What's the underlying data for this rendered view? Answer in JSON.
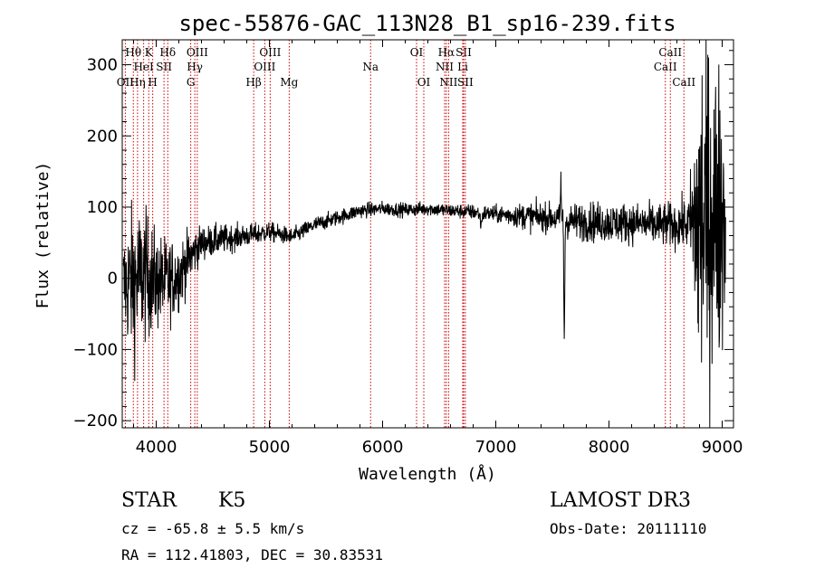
{
  "chart_data": {
    "type": "line",
    "title": "spec-55876-GAC_113N28_B1_sp16-239.fits",
    "xlabel": "Wavelength (Å)",
    "ylabel": "Flux (relative)",
    "xlim": [
      3700,
      9100
    ],
    "ylim": [
      -210,
      335
    ],
    "xticks": [
      4000,
      5000,
      6000,
      7000,
      8000,
      9000
    ],
    "yticks": [
      -200,
      -100,
      0,
      100,
      200,
      300
    ],
    "continuum": [
      [
        3700,
        -10
      ],
      [
        3800,
        -5
      ],
      [
        3900,
        5
      ],
      [
        4000,
        -5
      ],
      [
        4100,
        -5
      ],
      [
        4200,
        5
      ],
      [
        4300,
        30
      ],
      [
        4400,
        50
      ],
      [
        4600,
        55
      ],
      [
        4800,
        60
      ],
      [
        5000,
        65
      ],
      [
        5200,
        58
      ],
      [
        5400,
        75
      ],
      [
        5600,
        85
      ],
      [
        5800,
        95
      ],
      [
        6000,
        98
      ],
      [
        6200,
        96
      ],
      [
        6400,
        98
      ],
      [
        6600,
        95
      ],
      [
        6800,
        93
      ],
      [
        7000,
        90
      ],
      [
        7200,
        88
      ],
      [
        7500,
        85
      ],
      [
        7600,
        80
      ],
      [
        7800,
        80
      ],
      [
        8000,
        78
      ],
      [
        8200,
        78
      ],
      [
        8400,
        75
      ],
      [
        8600,
        75
      ],
      [
        8750,
        78
      ],
      [
        8800,
        75
      ],
      [
        8900,
        90
      ],
      [
        9000,
        90
      ]
    ],
    "noise": [
      [
        3700,
        35
      ],
      [
        3800,
        55
      ],
      [
        3900,
        45
      ],
      [
        4000,
        35
      ],
      [
        4200,
        25
      ],
      [
        4400,
        12
      ],
      [
        4800,
        8
      ],
      [
        5200,
        6
      ],
      [
        6000,
        5
      ],
      [
        6600,
        5
      ],
      [
        7000,
        6
      ],
      [
        7300,
        10
      ],
      [
        7500,
        10
      ],
      [
        7800,
        14
      ],
      [
        8200,
        14
      ],
      [
        8600,
        16
      ],
      [
        8700,
        18
      ],
      [
        8750,
        60
      ],
      [
        8800,
        140
      ],
      [
        8900,
        120
      ],
      [
        9000,
        100
      ]
    ],
    "features": [
      {
        "x": 7605,
        "depth": -160,
        "width": 6
      },
      {
        "x": 7575,
        "depth": 60,
        "width": 5
      },
      {
        "x": 6870,
        "depth": -15,
        "width": 12
      }
    ],
    "emission_lines": [
      {
        "name": "Hθ",
        "wavelength": 3798,
        "row": 1
      },
      {
        "name": "Hη",
        "wavelength": 3835,
        "row": 3
      },
      {
        "name": "OII",
        "wavelength": 3727,
        "row": 3
      },
      {
        "name": "HeI",
        "wavelength": 3889,
        "row": 2
      },
      {
        "name": "K",
        "wavelength": 3934,
        "row": 1
      },
      {
        "name": "H",
        "wavelength": 3969,
        "row": 3
      },
      {
        "name": "SII",
        "wavelength": 4069,
        "row": 2
      },
      {
        "name": "Hδ",
        "wavelength": 4102,
        "row": 1
      },
      {
        "name": "G",
        "wavelength": 4305,
        "row": 3
      },
      {
        "name": "Hγ",
        "wavelength": 4341,
        "row": 2
      },
      {
        "name": "OIII",
        "wavelength": 4363,
        "row": 1
      },
      {
        "name": "Hβ",
        "wavelength": 4861,
        "row": 3
      },
      {
        "name": "OIII",
        "wavelength": 4959,
        "row": 2
      },
      {
        "name": "OIII",
        "wavelength": 5007,
        "row": 1
      },
      {
        "name": "Mg",
        "wavelength": 5175,
        "row": 3
      },
      {
        "name": "Na",
        "wavelength": 5894,
        "row": 2
      },
      {
        "name": "OI",
        "wavelength": 6300,
        "row": 1
      },
      {
        "name": "OI",
        "wavelength": 6364,
        "row": 3
      },
      {
        "name": "NII",
        "wavelength": 6548,
        "row": 2
      },
      {
        "name": "Hα",
        "wavelength": 6563,
        "row": 1
      },
      {
        "name": "NII",
        "wavelength": 6583,
        "row": 3
      },
      {
        "name": "Li",
        "wavelength": 6708,
        "row": 2
      },
      {
        "name": "SII",
        "wavelength": 6716,
        "row": 1
      },
      {
        "name": "SII",
        "wavelength": 6731,
        "row": 3
      },
      {
        "name": "CaII",
        "wavelength": 8498,
        "row": 2
      },
      {
        "name": "CaII",
        "wavelength": 8542,
        "row": 1
      },
      {
        "name": "CaII",
        "wavelength": 8662,
        "row": 3
      }
    ],
    "line_color": "#000000",
    "marker_color": "#cc0000"
  },
  "info": {
    "object_class": "STAR",
    "subclass": "K5",
    "survey": "LAMOST DR3",
    "cz": "cz = -65.8 ± 5.5 km/s",
    "obs_date": "Obs-Date: 20111110",
    "coords": "RA = 112.41803, DEC =  30.83531"
  }
}
